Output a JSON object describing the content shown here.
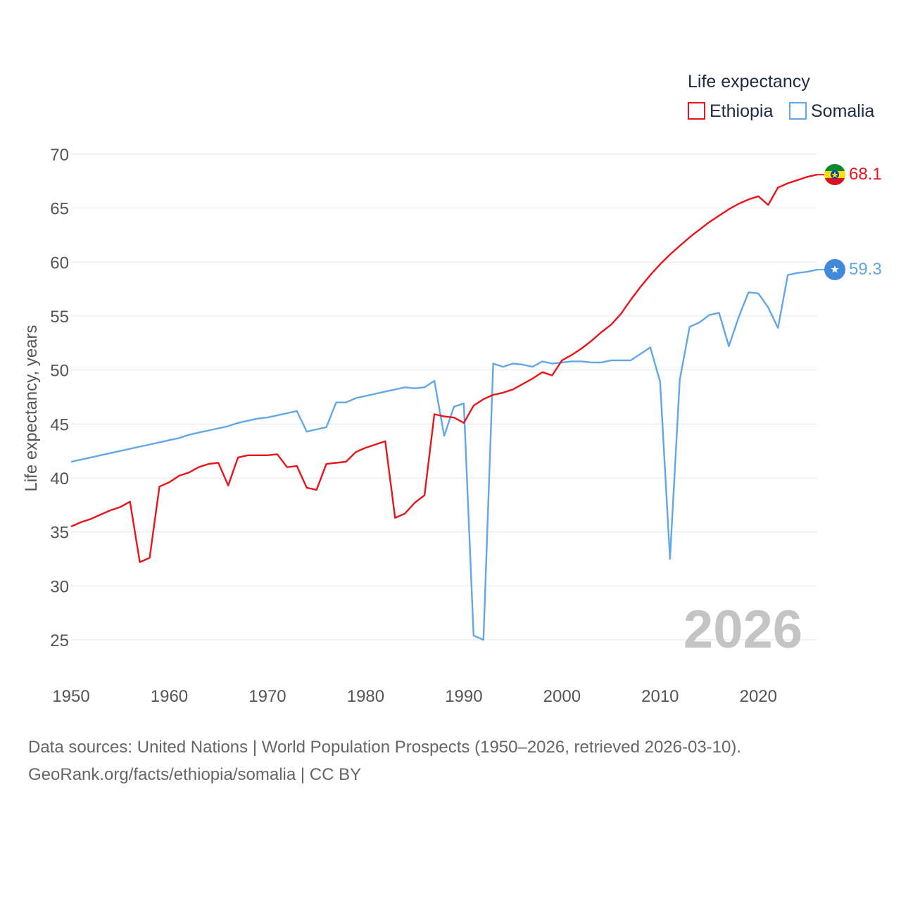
{
  "legend": {
    "title": "Life expectancy",
    "items": [
      {
        "name": "Ethiopia",
        "color": "#e8151b"
      },
      {
        "name": "Somalia",
        "color": "#62a7e6"
      }
    ]
  },
  "year_watermark": "2026",
  "footer": {
    "line1": "Data sources: United Nations | World Population Prospects (1950–2026, retrieved 2026-03-10).",
    "line2": "GeoRank.org/facts/ethiopia/somalia | CC BY"
  },
  "chart_data": {
    "type": "line",
    "title": "Life expectancy",
    "xlabel": "",
    "ylabel": "Life expectancy, years",
    "xlim": [
      1950,
      2026
    ],
    "ylim": [
      25,
      70
    ],
    "xticks": [
      1950,
      1960,
      1970,
      1980,
      1990,
      2000,
      2010,
      2020
    ],
    "yticks": [
      25,
      30,
      35,
      40,
      45,
      50,
      55,
      60,
      65,
      70
    ],
    "x": [
      1950,
      1951,
      1952,
      1953,
      1954,
      1955,
      1956,
      1957,
      1958,
      1959,
      1960,
      1961,
      1962,
      1963,
      1964,
      1965,
      1966,
      1967,
      1968,
      1969,
      1970,
      1971,
      1972,
      1973,
      1974,
      1975,
      1976,
      1977,
      1978,
      1979,
      1980,
      1981,
      1982,
      1983,
      1984,
      1985,
      1986,
      1987,
      1988,
      1989,
      1990,
      1991,
      1992,
      1993,
      1994,
      1995,
      1996,
      1997,
      1998,
      1999,
      2000,
      2001,
      2002,
      2003,
      2004,
      2005,
      2006,
      2007,
      2008,
      2009,
      2010,
      2011,
      2012,
      2013,
      2014,
      2015,
      2016,
      2017,
      2018,
      2019,
      2020,
      2021,
      2022,
      2023,
      2024,
      2025,
      2026
    ],
    "series": [
      {
        "name": "Ethiopia",
        "color": "#e8151b",
        "end_label": "68.1",
        "flag": "ethiopia-flag",
        "values": [
          35.5,
          35.9,
          36.2,
          36.6,
          37.0,
          37.3,
          37.8,
          32.2,
          32.6,
          39.2,
          39.6,
          40.2,
          40.5,
          41.0,
          41.3,
          41.4,
          39.3,
          41.9,
          42.1,
          42.1,
          42.1,
          42.2,
          41.0,
          41.1,
          39.1,
          38.9,
          41.3,
          41.4,
          41.5,
          42.4,
          42.8,
          43.1,
          43.4,
          36.3,
          36.7,
          37.7,
          38.4,
          45.9,
          45.7,
          45.6,
          45.1,
          46.7,
          47.3,
          47.7,
          47.9,
          48.2,
          48.7,
          49.2,
          49.8,
          49.5,
          50.9,
          51.4,
          52.0,
          52.7,
          53.5,
          54.2,
          55.2,
          56.5,
          57.7,
          58.8,
          59.8,
          60.7,
          61.5,
          62.3,
          63.0,
          63.7,
          64.3,
          64.9,
          65.4,
          65.8,
          66.1,
          65.3,
          66.9,
          67.3,
          67.6,
          67.9,
          68.1
        ]
      },
      {
        "name": "Somalia",
        "color": "#62a7e6",
        "end_label": "59.3",
        "flag": "somalia-flag",
        "values": [
          41.5,
          41.7,
          41.9,
          42.1,
          42.3,
          42.5,
          42.7,
          42.9,
          43.1,
          43.3,
          43.5,
          43.7,
          44.0,
          44.2,
          44.4,
          44.6,
          44.8,
          45.1,
          45.3,
          45.5,
          45.6,
          45.8,
          46.0,
          46.2,
          44.3,
          44.5,
          44.7,
          47.0,
          47.0,
          47.4,
          47.6,
          47.8,
          48.0,
          48.2,
          48.4,
          48.3,
          48.4,
          49.0,
          43.9,
          46.6,
          46.9,
          25.4,
          25.0,
          50.6,
          50.3,
          50.6,
          50.5,
          50.3,
          50.8,
          50.6,
          50.7,
          50.8,
          50.8,
          50.7,
          50.7,
          50.9,
          50.9,
          50.9,
          51.5,
          52.1,
          48.9,
          32.5,
          49.1,
          54.0,
          54.4,
          55.1,
          55.3,
          52.2,
          54.9,
          57.2,
          57.1,
          55.8,
          53.9,
          58.8,
          59.0,
          59.1,
          59.3
        ]
      }
    ]
  }
}
